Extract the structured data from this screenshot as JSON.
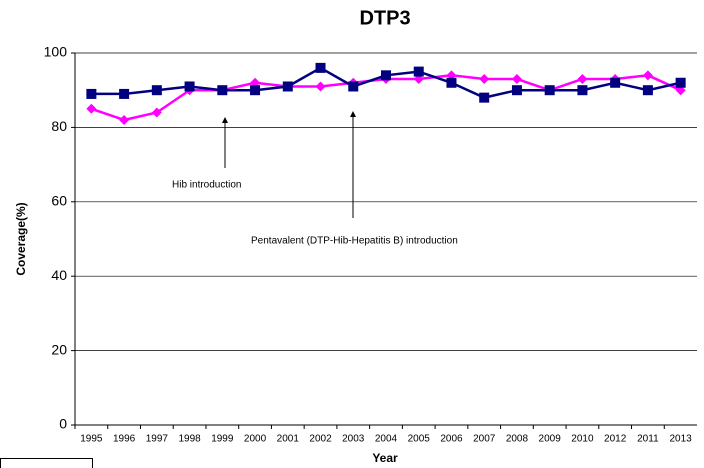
{
  "chart_data": {
    "type": "line",
    "title": "DTP3",
    "x_label": "Year",
    "y_label": "Coverage(%)",
    "categories": [
      "1995",
      "1996",
      "1997",
      "1998",
      "1999",
      "2000",
      "2001",
      "2002",
      "2003",
      "2004",
      "2005",
      "2006",
      "2007",
      "2008",
      "2009",
      "2010",
      "2012",
      "2011",
      "2013"
    ],
    "series": [
      {
        "color": "#ff00ff",
        "marker": "diamond",
        "values": [
          85,
          82,
          84,
          90,
          90,
          92,
          91,
          91,
          92,
          93,
          93,
          94,
          93,
          93,
          90,
          93,
          93,
          94,
          90
        ]
      },
      {
        "color": "#000080",
        "marker": "square",
        "values": [
          89,
          89,
          90,
          91,
          90,
          90,
          91,
          96,
          91,
          94,
          95,
          92,
          88,
          90,
          90,
          90,
          92,
          90,
          92
        ]
      }
    ],
    "ylim": [
      0,
      100
    ],
    "yticks": [
      0,
      20,
      40,
      60,
      80,
      100
    ],
    "grid": true,
    "annotations": [
      "Hib introduction",
      "Pentavalent (DTP-Hib-Hepatitis B) introduction"
    ]
  }
}
